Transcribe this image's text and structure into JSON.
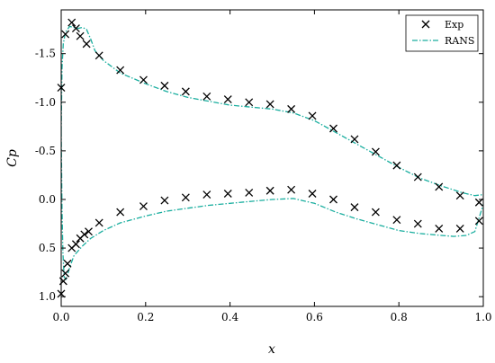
{
  "chart_data": {
    "type": "scatter",
    "title": "",
    "xlabel": "x",
    "ylabel": "Cp",
    "xlim": [
      0.0,
      1.0
    ],
    "ylim": [
      1.1,
      -1.95
    ],
    "y_axis_inverted": true,
    "grid": false,
    "legend_position": "top-right",
    "xticks": [
      0.0,
      0.2,
      0.4,
      0.6,
      0.8,
      1.0
    ],
    "xtick_labels": [
      "0.0",
      "0.2",
      "0.4",
      "0.6",
      "0.8",
      "1.0"
    ],
    "yticks": [
      -1.5,
      -1.0,
      -0.5,
      0.0,
      0.5,
      1.0
    ],
    "ytick_labels": [
      "-1.5",
      "-1.0",
      "-0.5",
      "0.0",
      "0.5",
      "1.0"
    ],
    "series": [
      {
        "name": "Exp",
        "kind": "scatter",
        "marker": "x",
        "color": "#000000",
        "points": [
          [
            0.0,
            -1.15
          ],
          [
            0.01,
            -1.7
          ],
          [
            0.025,
            -1.82
          ],
          [
            0.035,
            -1.76
          ],
          [
            0.045,
            -1.68
          ],
          [
            0.06,
            -1.6
          ],
          [
            0.09,
            -1.48
          ],
          [
            0.14,
            -1.33
          ],
          [
            0.195,
            -1.23
          ],
          [
            0.245,
            -1.17
          ],
          [
            0.295,
            -1.11
          ],
          [
            0.345,
            -1.06
          ],
          [
            0.395,
            -1.03
          ],
          [
            0.445,
            -1.0
          ],
          [
            0.495,
            -0.98
          ],
          [
            0.545,
            -0.93
          ],
          [
            0.595,
            -0.86
          ],
          [
            0.645,
            -0.73
          ],
          [
            0.695,
            -0.62
          ],
          [
            0.745,
            -0.49
          ],
          [
            0.795,
            -0.35
          ],
          [
            0.845,
            -0.23
          ],
          [
            0.895,
            -0.13
          ],
          [
            0.945,
            -0.04
          ],
          [
            0.99,
            0.03
          ],
          [
            0.0,
            0.97
          ],
          [
            0.005,
            0.84
          ],
          [
            0.01,
            0.76
          ],
          [
            0.015,
            0.66
          ],
          [
            0.025,
            0.5
          ],
          [
            0.035,
            0.46
          ],
          [
            0.045,
            0.4
          ],
          [
            0.055,
            0.36
          ],
          [
            0.065,
            0.33
          ],
          [
            0.09,
            0.24
          ],
          [
            0.14,
            0.13
          ],
          [
            0.195,
            0.07
          ],
          [
            0.245,
            0.01
          ],
          [
            0.295,
            -0.02
          ],
          [
            0.345,
            -0.05
          ],
          [
            0.395,
            -0.06
          ],
          [
            0.445,
            -0.07
          ],
          [
            0.495,
            -0.09
          ],
          [
            0.545,
            -0.1
          ],
          [
            0.595,
            -0.06
          ],
          [
            0.645,
            0.0
          ],
          [
            0.695,
            0.08
          ],
          [
            0.745,
            0.13
          ],
          [
            0.795,
            0.21
          ],
          [
            0.845,
            0.25
          ],
          [
            0.895,
            0.3
          ],
          [
            0.945,
            0.3
          ],
          [
            0.99,
            0.22
          ]
        ]
      },
      {
        "name": "RANS",
        "kind": "line",
        "line_style": "dash-dot",
        "color": "#1aae9f",
        "upper": [
          [
            0.0,
            -0.7
          ],
          [
            0.002,
            -1.35
          ],
          [
            0.005,
            -1.6
          ],
          [
            0.01,
            -1.72
          ],
          [
            0.02,
            -1.78
          ],
          [
            0.03,
            -1.77
          ],
          [
            0.04,
            -1.76
          ],
          [
            0.05,
            -1.77
          ],
          [
            0.06,
            -1.75
          ],
          [
            0.07,
            -1.65
          ],
          [
            0.08,
            -1.53
          ],
          [
            0.1,
            -1.43
          ],
          [
            0.14,
            -1.3
          ],
          [
            0.2,
            -1.19
          ],
          [
            0.25,
            -1.11
          ],
          [
            0.3,
            -1.05
          ],
          [
            0.35,
            -1.01
          ],
          [
            0.4,
            -0.97
          ],
          [
            0.45,
            -0.95
          ],
          [
            0.5,
            -0.93
          ],
          [
            0.55,
            -0.89
          ],
          [
            0.6,
            -0.81
          ],
          [
            0.65,
            -0.69
          ],
          [
            0.7,
            -0.57
          ],
          [
            0.75,
            -0.45
          ],
          [
            0.8,
            -0.33
          ],
          [
            0.85,
            -0.22
          ],
          [
            0.9,
            -0.14
          ],
          [
            0.95,
            -0.07
          ],
          [
            0.98,
            -0.04
          ],
          [
            1.0,
            -0.05
          ]
        ],
        "lower": [
          [
            0.0,
            -0.7
          ],
          [
            0.002,
            0.1
          ],
          [
            0.004,
            0.55
          ],
          [
            0.007,
            0.8
          ],
          [
            0.012,
            0.82
          ],
          [
            0.02,
            0.7
          ],
          [
            0.03,
            0.58
          ],
          [
            0.05,
            0.48
          ],
          [
            0.07,
            0.4
          ],
          [
            0.1,
            0.32
          ],
          [
            0.14,
            0.24
          ],
          [
            0.2,
            0.17
          ],
          [
            0.25,
            0.12
          ],
          [
            0.3,
            0.09
          ],
          [
            0.35,
            0.06
          ],
          [
            0.4,
            0.04
          ],
          [
            0.45,
            0.02
          ],
          [
            0.5,
            0.0
          ],
          [
            0.55,
            -0.01
          ],
          [
            0.6,
            0.04
          ],
          [
            0.65,
            0.13
          ],
          [
            0.7,
            0.2
          ],
          [
            0.75,
            0.26
          ],
          [
            0.8,
            0.32
          ],
          [
            0.85,
            0.35
          ],
          [
            0.9,
            0.37
          ],
          [
            0.93,
            0.38
          ],
          [
            0.96,
            0.37
          ],
          [
            0.98,
            0.33
          ],
          [
            1.0,
            0.05
          ]
        ]
      }
    ]
  }
}
